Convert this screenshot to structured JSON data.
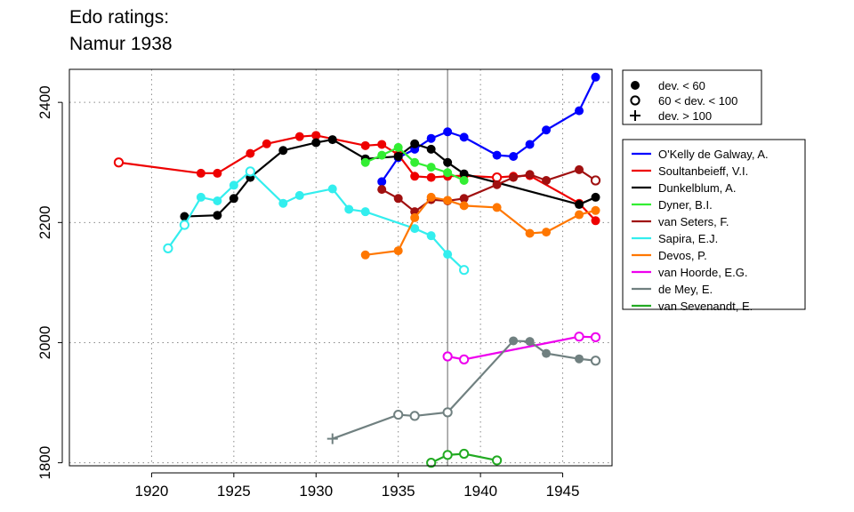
{
  "title_line1": "Edo ratings:",
  "title_line2": "Namur 1938",
  "chart_data": {
    "type": "line",
    "xlim": [
      1915,
      1948
    ],
    "ylim": [
      1795,
      2455
    ],
    "x_ticks": [
      1920,
      1925,
      1930,
      1935,
      1940,
      1945
    ],
    "y_ticks": [
      1800,
      2000,
      2200,
      2400
    ],
    "grid": true,
    "vertical_marker_x": 1938,
    "marker_legend": [
      {
        "symbol": "filled",
        "label": "dev. < 60"
      },
      {
        "symbol": "open",
        "label": "60 < dev. < 100"
      },
      {
        "symbol": "plus",
        "label": "dev. > 100"
      }
    ],
    "series": [
      {
        "name": "O'Kelly de Galway, A.",
        "color": "#0000ff",
        "points": [
          [
            1934,
            2268,
            "f"
          ],
          [
            1935,
            2308,
            "f"
          ],
          [
            1936,
            2322,
            "f"
          ],
          [
            1937,
            2340,
            "f"
          ],
          [
            1938,
            2351,
            "f"
          ],
          [
            1939,
            2342,
            "f"
          ],
          [
            1941,
            2312,
            "f"
          ],
          [
            1942,
            2310,
            "f"
          ],
          [
            1943,
            2330,
            "f"
          ],
          [
            1944,
            2354,
            "f"
          ],
          [
            1946,
            2386,
            "f"
          ],
          [
            1947,
            2442,
            "f"
          ]
        ]
      },
      {
        "name": "Soultanbeieff, V.I.",
        "color": "#ee0000",
        "points": [
          [
            1918,
            2300,
            "o"
          ],
          [
            1923,
            2282,
            "f"
          ],
          [
            1924,
            2282,
            "f"
          ],
          [
            1926,
            2315,
            "f"
          ],
          [
            1927,
            2331,
            "f"
          ],
          [
            1929,
            2343,
            "f"
          ],
          [
            1930,
            2345,
            "f"
          ],
          [
            1933,
            2328,
            "f"
          ],
          [
            1934,
            2330,
            "f"
          ],
          [
            1935,
            2313,
            "f"
          ],
          [
            1936,
            2277,
            "f"
          ],
          [
            1937,
            2275,
            "f"
          ],
          [
            1938,
            2277,
            "f"
          ],
          [
            1939,
            2278,
            "f"
          ],
          [
            1941,
            2275,
            "o"
          ],
          [
            1942,
            2277,
            "f"
          ],
          [
            1943,
            2278,
            "f"
          ],
          [
            1946,
            2232,
            "f"
          ],
          [
            1947,
            2203,
            "f"
          ]
        ]
      },
      {
        "name": "Dunkelblum, A.",
        "color": "#000000",
        "points": [
          [
            1922,
            2210,
            "f"
          ],
          [
            1924,
            2212,
            "f"
          ],
          [
            1925,
            2240,
            "f"
          ],
          [
            1926,
            2275,
            "f"
          ],
          [
            1928,
            2320,
            "f"
          ],
          [
            1930,
            2333,
            "f"
          ],
          [
            1931,
            2338,
            "f"
          ],
          [
            1933,
            2306,
            "f"
          ],
          [
            1935,
            2310,
            "f"
          ],
          [
            1936,
            2331,
            "f"
          ],
          [
            1937,
            2322,
            "f"
          ],
          [
            1938,
            2300,
            "f"
          ],
          [
            1939,
            2281,
            "f"
          ],
          [
            1946,
            2230,
            "f"
          ],
          [
            1947,
            2242,
            "f"
          ]
        ]
      },
      {
        "name": "Dyner, B.I.",
        "color": "#33ee33",
        "points": [
          [
            1933,
            2300,
            "f"
          ],
          [
            1934,
            2312,
            "f"
          ],
          [
            1935,
            2325,
            "f"
          ],
          [
            1936,
            2300,
            "f"
          ],
          [
            1937,
            2292,
            "f"
          ],
          [
            1938,
            2283,
            "f"
          ],
          [
            1939,
            2270,
            "f"
          ]
        ]
      },
      {
        "name": "van Seters, F.",
        "color": "#a01010",
        "points": [
          [
            1934,
            2255,
            "f"
          ],
          [
            1935,
            2240,
            "f"
          ],
          [
            1936,
            2218,
            "f"
          ],
          [
            1937,
            2238,
            "f"
          ],
          [
            1938,
            2236,
            "f"
          ],
          [
            1939,
            2240,
            "f"
          ],
          [
            1941,
            2263,
            "f"
          ],
          [
            1942,
            2275,
            "f"
          ],
          [
            1943,
            2280,
            "f"
          ],
          [
            1944,
            2270,
            "f"
          ],
          [
            1946,
            2288,
            "f"
          ],
          [
            1947,
            2270,
            "o"
          ]
        ]
      },
      {
        "name": "Sapira, E.J.",
        "color": "#33eeee",
        "points": [
          [
            1921,
            2157,
            "o"
          ],
          [
            1922,
            2196,
            "o"
          ],
          [
            1923,
            2242,
            "f"
          ],
          [
            1924,
            2236,
            "f"
          ],
          [
            1925,
            2262,
            "f"
          ],
          [
            1926,
            2285,
            "o"
          ],
          [
            1928,
            2232,
            "f"
          ],
          [
            1929,
            2245,
            "f"
          ],
          [
            1931,
            2256,
            "f"
          ],
          [
            1932,
            2222,
            "f"
          ],
          [
            1933,
            2218,
            "f"
          ],
          [
            1936,
            2190,
            "f"
          ],
          [
            1937,
            2178,
            "f"
          ],
          [
            1938,
            2147,
            "f"
          ],
          [
            1939,
            2121,
            "o"
          ]
        ]
      },
      {
        "name": "Devos, P.",
        "color": "#ff7700",
        "points": [
          [
            1933,
            2146,
            "f"
          ],
          [
            1935,
            2153,
            "f"
          ],
          [
            1936,
            2208,
            "f"
          ],
          [
            1937,
            2242,
            "f"
          ],
          [
            1938,
            2237,
            "f"
          ],
          [
            1939,
            2228,
            "f"
          ],
          [
            1941,
            2225,
            "f"
          ],
          [
            1943,
            2182,
            "f"
          ],
          [
            1944,
            2184,
            "f"
          ],
          [
            1946,
            2213,
            "f"
          ],
          [
            1947,
            2220,
            "f"
          ]
        ]
      },
      {
        "name": "van Hoorde, E.G.",
        "color": "#ee00ee",
        "points": [
          [
            1938,
            1977,
            "o"
          ],
          [
            1939,
            1972,
            "o"
          ],
          [
            1946,
            2010,
            "o"
          ],
          [
            1947,
            2009,
            "o"
          ]
        ]
      },
      {
        "name": "de Mey, E.",
        "color": "#708080",
        "points": [
          [
            1931,
            1840,
            "p"
          ],
          [
            1935,
            1880,
            "o"
          ],
          [
            1936,
            1878,
            "o"
          ],
          [
            1938,
            1884,
            "o"
          ],
          [
            1942,
            2003,
            "f"
          ],
          [
            1943,
            2002,
            "f"
          ],
          [
            1944,
            1982,
            "f"
          ],
          [
            1946,
            1973,
            "f"
          ],
          [
            1947,
            1970,
            "o"
          ]
        ]
      },
      {
        "name": "van Sevenandt, E.",
        "color": "#22aa22",
        "points": [
          [
            1937,
            1800,
            "o"
          ],
          [
            1938,
            1813,
            "o"
          ],
          [
            1939,
            1815,
            "o"
          ],
          [
            1941,
            1804,
            "o"
          ]
        ]
      }
    ]
  }
}
